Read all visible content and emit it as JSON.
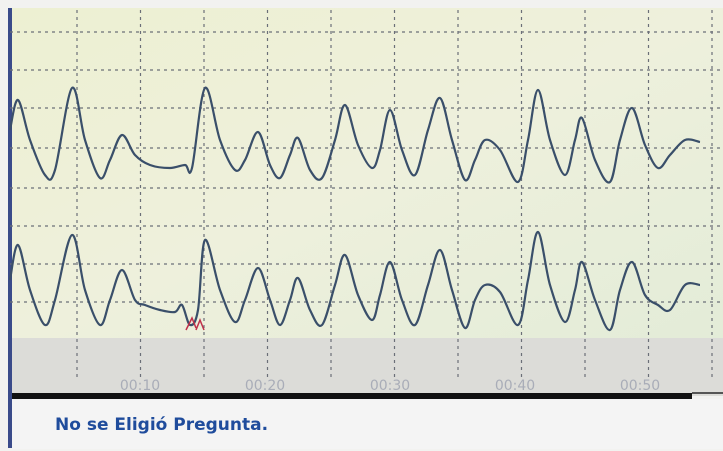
{
  "timeline": {
    "labels": [
      "00:10",
      "00:20",
      "00:30",
      "00:40",
      "00:50"
    ]
  },
  "status_bar": {
    "message": "No se Eligió Pregunta."
  }
}
